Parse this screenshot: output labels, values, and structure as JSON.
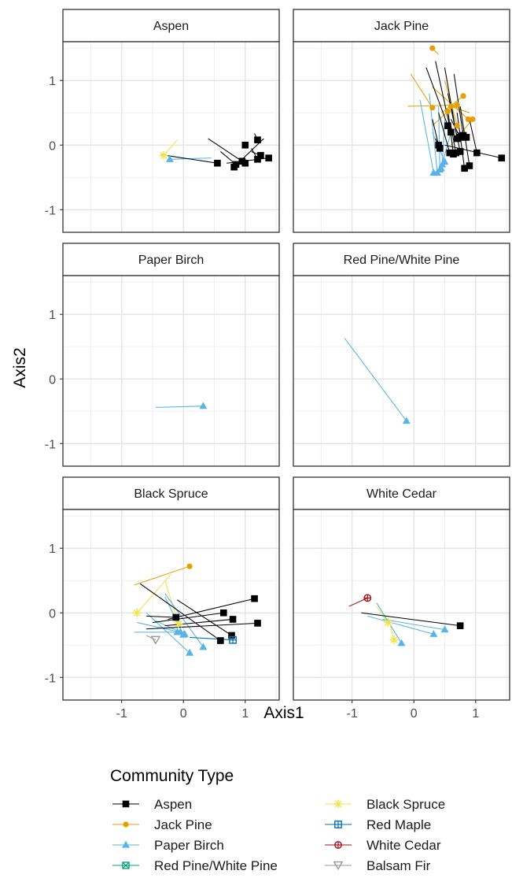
{
  "chart_data": {
    "type": "scatter",
    "title": "",
    "xlabel": "Axis1",
    "ylabel": "Axis2",
    "xlim": [
      -1.95,
      1.55
    ],
    "ylim": [
      -1.35,
      1.6
    ],
    "x_ticks": [
      -1,
      0,
      1
    ],
    "y_ticks": [
      -1,
      0,
      1
    ],
    "tick_labels": {
      "x": [
        "-1",
        "0",
        "1"
      ],
      "y": [
        "-1",
        "0",
        "1"
      ]
    },
    "grid": true,
    "legend": {
      "title": "Community Type",
      "placement": "bottom",
      "entries": [
        {
          "name": "Aspen",
          "color": "#000000",
          "shape": "square"
        },
        {
          "name": "Jack Pine",
          "color": "#E69F00",
          "shape": "circle"
        },
        {
          "name": "Paper Birch",
          "color": "#56B4E9",
          "shape": "triangle"
        },
        {
          "name": "Red Pine/White Pine",
          "color": "#009E73",
          "shape": "square-x"
        },
        {
          "name": "Black Spruce",
          "color": "#F0E442",
          "shape": "asterisk"
        },
        {
          "name": "Red Maple",
          "color": "#0072B2",
          "shape": "square-plus"
        },
        {
          "name": "White Cedar",
          "color": "#A50F15",
          "shape": "circle-plus"
        },
        {
          "name": "Balsam Fir",
          "color": "#999999",
          "shape": "triangle-down"
        }
      ]
    },
    "panels": [
      {
        "name": "Aspen",
        "segments": [
          {
            "type": "Black Spruce",
            "from": [
              -0.1,
              0.08
            ],
            "to": [
              -0.32,
              -0.16
            ]
          },
          {
            "type": "Paper Birch",
            "from": [
              0.45,
              -0.2
            ],
            "to": [
              -0.22,
              -0.22
            ]
          },
          {
            "type": "Aspen",
            "from": [
              -0.35,
              -0.15
            ],
            "to": [
              0.55,
              -0.28
            ]
          },
          {
            "type": "Aspen",
            "from": [
              0.6,
              -0.1
            ],
            "to": [
              0.85,
              -0.3
            ]
          },
          {
            "type": "Aspen",
            "from": [
              1.15,
              0.18
            ],
            "to": [
              1.2,
              0.08
            ]
          },
          {
            "type": "Aspen",
            "from": [
              1.3,
              0.1
            ],
            "to": [
              0.82,
              -0.34
            ]
          },
          {
            "type": "Aspen",
            "from": [
              0.4,
              0.1
            ],
            "to": [
              0.95,
              -0.25
            ]
          },
          {
            "type": "Aspen",
            "from": [
              1.1,
              -0.05
            ],
            "to": [
              1.2,
              -0.22
            ]
          },
          {
            "type": "Aspen",
            "from": [
              0.7,
              -0.28
            ],
            "to": [
              1.38,
              -0.2
            ]
          },
          {
            "type": "Aspen",
            "from": [
              1.1,
              -0.1
            ],
            "to": [
              1.25,
              -0.16
            ]
          },
          {
            "type": "Aspen",
            "from": [
              0.95,
              0.0
            ],
            "to": [
              1.0,
              0.0
            ]
          },
          {
            "type": "Aspen",
            "from": [
              1.0,
              -0.22
            ],
            "to": [
              1.0,
              -0.28
            ]
          }
        ]
      },
      {
        "name": "Jack Pine",
        "segments": [
          {
            "type": "Jack Pine",
            "from": [
              0.4,
              1.4
            ],
            "to": [
              0.3,
              1.5
            ]
          },
          {
            "type": "Jack Pine",
            "from": [
              -0.05,
              1.1
            ],
            "to": [
              0.3,
              0.58
            ]
          },
          {
            "type": "Jack Pine",
            "from": [
              -0.1,
              0.6
            ],
            "to": [
              0.7,
              0.62
            ]
          },
          {
            "type": "Jack Pine",
            "from": [
              0.45,
              0.5
            ],
            "to": [
              0.8,
              0.76
            ]
          },
          {
            "type": "Jack Pine",
            "from": [
              0.3,
              0.9
            ],
            "to": [
              0.88,
              0.4
            ]
          },
          {
            "type": "Jack Pine",
            "from": [
              0.9,
              0.5
            ],
            "to": [
              0.6,
              0.6
            ]
          },
          {
            "type": "Jack Pine",
            "from": [
              0.3,
              0.3
            ],
            "to": [
              0.55,
              0.52
            ]
          },
          {
            "type": "Jack Pine",
            "from": [
              0.5,
              1.0
            ],
            "to": [
              0.7,
              0.3
            ]
          },
          {
            "type": "Jack Pine",
            "from": [
              0.6,
              0.0
            ],
            "to": [
              0.95,
              0.4
            ]
          },
          {
            "type": "Paper Birch",
            "from": [
              0.1,
              0.7
            ],
            "to": [
              0.32,
              -0.43
            ]
          },
          {
            "type": "Paper Birch",
            "from": [
              0.25,
              0.8
            ],
            "to": [
              0.38,
              -0.43
            ]
          },
          {
            "type": "Paper Birch",
            "from": [
              0.4,
              0.6
            ],
            "to": [
              0.42,
              -0.38
            ]
          },
          {
            "type": "Paper Birch",
            "from": [
              0.5,
              0.4
            ],
            "to": [
              0.46,
              -0.3
            ]
          },
          {
            "type": "Paper Birch",
            "from": [
              0.3,
              0.2
            ],
            "to": [
              0.5,
              -0.26
            ]
          },
          {
            "type": "Paper Birch",
            "from": [
              0.6,
              0.2
            ],
            "to": [
              0.44,
              -0.36
            ]
          },
          {
            "type": "Aspen",
            "from": [
              0.2,
              1.2
            ],
            "to": [
              0.55,
              0.3
            ]
          },
          {
            "type": "Aspen",
            "from": [
              0.35,
              1.3
            ],
            "to": [
              0.6,
              0.2
            ]
          },
          {
            "type": "Aspen",
            "from": [
              0.5,
              1.2
            ],
            "to": [
              0.7,
              0.1
            ]
          },
          {
            "type": "Aspen",
            "from": [
              0.65,
              1.1
            ],
            "to": [
              0.8,
              0.15
            ]
          },
          {
            "type": "Aspen",
            "from": [
              0.55,
              0.8
            ],
            "to": [
              0.75,
              -0.1
            ]
          },
          {
            "type": "Aspen",
            "from": [
              0.3,
              0.4
            ],
            "to": [
              0.4,
              0.0
            ]
          },
          {
            "type": "Aspen",
            "from": [
              0.35,
              0.1
            ],
            "to": [
              0.42,
              -0.05
            ]
          },
          {
            "type": "Aspen",
            "from": [
              0.7,
              0.5
            ],
            "to": [
              0.82,
              -0.36
            ]
          },
          {
            "type": "Aspen",
            "from": [
              0.75,
              0.6
            ],
            "to": [
              0.9,
              -0.32
            ]
          },
          {
            "type": "Aspen",
            "from": [
              0.5,
              0.0
            ],
            "to": [
              1.42,
              -0.2
            ]
          },
          {
            "type": "Aspen",
            "from": [
              0.9,
              0.4
            ],
            "to": [
              1.02,
              -0.12
            ]
          },
          {
            "type": "Aspen",
            "from": [
              0.4,
              0.5
            ],
            "to": [
              0.58,
              -0.12
            ]
          },
          {
            "type": "Aspen",
            "from": [
              0.55,
              0.55
            ],
            "to": [
              0.64,
              -0.14
            ]
          },
          {
            "type": "Aspen",
            "from": [
              0.6,
              0.3
            ],
            "to": [
              0.68,
              -0.12
            ]
          },
          {
            "type": "Aspen",
            "from": [
              0.6,
              0.4
            ],
            "to": [
              0.75,
              0.12
            ]
          },
          {
            "type": "Aspen",
            "from": [
              0.7,
              0.2
            ],
            "to": [
              0.85,
              0.12
            ]
          }
        ]
      },
      {
        "name": "Paper Birch",
        "segments": [
          {
            "type": "Paper Birch",
            "from": [
              -0.45,
              -0.44
            ],
            "to": [
              0.32,
              -0.42
            ]
          }
        ]
      },
      {
        "name": "Red Pine/White Pine",
        "segments": [
          {
            "type": "Paper Birch",
            "from": [
              -1.12,
              0.63
            ],
            "to": [
              -0.12,
              -0.65
            ]
          }
        ]
      },
      {
        "name": "Black Spruce",
        "segments": [
          {
            "type": "Jack Pine",
            "from": [
              -0.8,
              0.43
            ],
            "to": [
              0.1,
              0.72
            ]
          },
          {
            "type": "Black Spruce",
            "from": [
              -0.2,
              0.6
            ],
            "to": [
              -0.75,
              0.0
            ]
          },
          {
            "type": "Black Spruce",
            "from": [
              -0.3,
              0.5
            ],
            "to": [
              -0.08,
              -0.17
            ]
          },
          {
            "type": "Paper Birch",
            "from": [
              -0.6,
              0.0
            ],
            "to": [
              0.1,
              -0.62
            ]
          },
          {
            "type": "Paper Birch",
            "from": [
              -0.3,
              0.3
            ],
            "to": [
              0.32,
              -0.53
            ]
          },
          {
            "type": "Paper Birch",
            "from": [
              -0.5,
              -0.1
            ],
            "to": [
              0.02,
              -0.33
            ]
          },
          {
            "type": "Paper Birch",
            "from": [
              -0.3,
              0.25
            ],
            "to": [
              0.0,
              -0.34
            ]
          },
          {
            "type": "Paper Birch",
            "from": [
              -0.8,
              -0.3
            ],
            "to": [
              -0.1,
              -0.3
            ]
          },
          {
            "type": "Paper Birch",
            "from": [
              -0.75,
              -0.15
            ],
            "to": [
              -0.05,
              -0.3
            ]
          },
          {
            "type": "Aspen",
            "from": [
              -0.25,
              -0.1
            ],
            "to": [
              1.15,
              0.22
            ]
          },
          {
            "type": "Aspen",
            "from": [
              -0.5,
              -0.15
            ],
            "to": [
              0.65,
              0.0
            ]
          },
          {
            "type": "Aspen",
            "from": [
              -0.6,
              -0.25
            ],
            "to": [
              1.2,
              -0.16
            ]
          },
          {
            "type": "Aspen",
            "from": [
              -0.3,
              -0.2
            ],
            "to": [
              0.8,
              -0.1
            ]
          },
          {
            "type": "Aspen",
            "from": [
              -0.7,
              0.45
            ],
            "to": [
              0.6,
              -0.43
            ]
          },
          {
            "type": "Aspen",
            "from": [
              -0.1,
              0.2
            ],
            "to": [
              0.78,
              -0.35
            ]
          },
          {
            "type": "Aspen",
            "from": [
              -0.6,
              -0.05
            ],
            "to": [
              -0.12,
              -0.07
            ]
          },
          {
            "type": "Red Maple",
            "from": [
              0.1,
              -0.38
            ],
            "to": [
              0.8,
              -0.42
            ]
          },
          {
            "type": "Balsam Fir",
            "from": [
              -0.6,
              -0.35
            ],
            "to": [
              -0.45,
              -0.42
            ]
          }
        ]
      },
      {
        "name": "White Cedar",
        "segments": [
          {
            "type": "White Cedar",
            "from": [
              -1.05,
              0.1
            ],
            "to": [
              -0.75,
              0.23
            ]
          },
          {
            "type": "Black Spruce",
            "from": [
              -0.6,
              0.1
            ],
            "to": [
              -0.42,
              -0.15
            ]
          },
          {
            "type": "Black Spruce",
            "from": [
              -0.38,
              -0.2
            ],
            "to": [
              -0.32,
              -0.42
            ]
          },
          {
            "type": "Paper Birch",
            "from": [
              -0.6,
              0.15
            ],
            "to": [
              -0.2,
              -0.47
            ]
          },
          {
            "type": "Paper Birch",
            "from": [
              -0.75,
              -0.05
            ],
            "to": [
              0.32,
              -0.33
            ]
          },
          {
            "type": "Paper Birch",
            "from": [
              -0.5,
              -0.1
            ],
            "to": [
              0.5,
              -0.26
            ]
          },
          {
            "type": "Aspen",
            "from": [
              -0.85,
              0.0
            ],
            "to": [
              0.75,
              -0.2
            ]
          }
        ]
      }
    ]
  }
}
